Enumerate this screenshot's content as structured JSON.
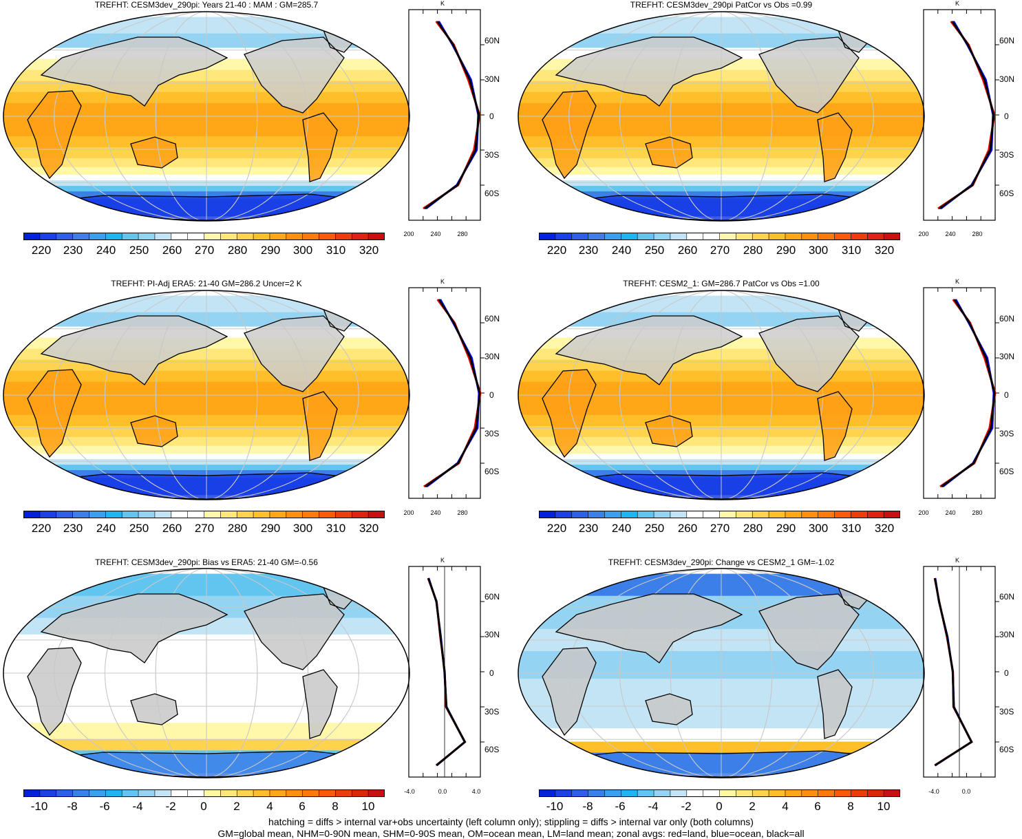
{
  "panels": [
    {
      "title": "TREFHT: CESM3dev_290pi: Years 21-40 : MAM : GM=285.7",
      "kind": "abs"
    },
    {
      "title": "TREFHT: CESM3dev_290pi PatCor vs Obs =0.99",
      "kind": "abs"
    },
    {
      "title": "TREFHT: PI-Adj ERA5: 21-40 GM=286.2 Uncer=2 K",
      "kind": "abs"
    },
    {
      "title": "TREFHT: CESM2_1: GM=286.7 PatCor vs Obs =1.00",
      "kind": "abs"
    },
    {
      "title": "TREFHT: CESM3dev_290pi: Bias vs ERA5: 21-40 GM=-0.56",
      "kind": "diff"
    },
    {
      "title": "TREFHT: CESM3dev_290pi: Change vs CESM2_1 GM=-1.02",
      "kind": "diff"
    }
  ],
  "colorbars": {
    "abs_labels": [
      "220",
      "230",
      "240",
      "250",
      "260",
      "270",
      "280",
      "290",
      "300",
      "310",
      "320"
    ],
    "diff_labels": [
      "-10",
      "-8",
      "-6",
      "-4",
      "-2",
      "0",
      "2",
      "4",
      "6",
      "8",
      "10"
    ],
    "colors": [
      "#0022dd",
      "#1a40e6",
      "#2f5ee8",
      "#3d7fe8",
      "#3b9ff0",
      "#1fb4f2",
      "#62c5f0",
      "#94d3f2",
      "#c2e4f5",
      "#ffffff",
      "#ffffff",
      "#fff8a8",
      "#ffe77a",
      "#ffd34d",
      "#ffbf2a",
      "#ffa717",
      "#ff900f",
      "#ff7a0a",
      "#fa5a0a",
      "#ee3d0c",
      "#dd2410",
      "#c80f12"
    ]
  },
  "zonal": {
    "unit": "K",
    "lat_labels": [
      "60N",
      "30N",
      "0",
      "30S",
      "60S"
    ],
    "abs_x_left": [
      "200",
      "240",
      "280"
    ],
    "abs_x_right": [
      "200",
      "240",
      "280"
    ],
    "diff_x_left": [
      "-4.0",
      "0.0",
      "4.0"
    ],
    "diff_x_right": [
      "-4.0",
      "0.0"
    ]
  },
  "colors": {
    "land": "#ff0000",
    "ocean": "#0000ff",
    "all": "#000000"
  },
  "footnote": {
    "line1": "hatching = diffs > internal var+obs uncertainty (left column only); stippling = diffs > internal var only (both columns)",
    "line2": "GM=global mean, NHM=0-90N mean, SHM=0-90S mean, OM=ocean mean, LM=land mean; zonal avgs: red=land, blue=ocean, black=all"
  },
  "chart_data": [
    {
      "type": "heatmap",
      "title": "TREFHT: CESM3dev_290pi: Years 21-40 : MAM : GM=285.7",
      "colorbar_range": [
        215,
        325
      ],
      "zonal_profile": {
        "lat": [
          80,
          60,
          30,
          0,
          -30,
          -60,
          -80
        ],
        "all": [
          240,
          262,
          285,
          298,
          293,
          268,
          222
        ]
      }
    },
    {
      "type": "heatmap",
      "title": "TREFHT: CESM3dev_290pi PatCor vs Obs =0.99",
      "colorbar_range": [
        215,
        325
      ],
      "zonal_profile": {
        "lat": [
          80,
          60,
          30,
          0,
          -30,
          -60,
          -80
        ],
        "all": [
          240,
          262,
          285,
          298,
          293,
          268,
          222
        ]
      }
    },
    {
      "type": "heatmap",
      "title": "TREFHT: PI-Adj ERA5: 21-40 GM=286.2 Uncer=2 K",
      "colorbar_range": [
        215,
        325
      ],
      "zonal_profile": {
        "lat": [
          80,
          60,
          30,
          0,
          -30,
          -60,
          -80
        ],
        "all": [
          242,
          263,
          286,
          299,
          294,
          269,
          223
        ]
      }
    },
    {
      "type": "heatmap",
      "title": "TREFHT: CESM2_1: GM=286.7 PatCor vs Obs =1.00",
      "colorbar_range": [
        215,
        325
      ],
      "zonal_profile": {
        "lat": [
          80,
          60,
          30,
          0,
          -30,
          -60,
          -80
        ],
        "all": [
          243,
          264,
          287,
          299,
          294,
          270,
          225
        ]
      }
    },
    {
      "type": "heatmap",
      "title": "TREFHT: CESM3dev_290pi: Bias vs ERA5: 21-40 GM=-0.56",
      "colorbar_range": [
        -11,
        11
      ],
      "zonal_profile": {
        "lat": [
          80,
          60,
          30,
          0,
          -30,
          -60,
          -80
        ],
        "all": [
          -2.0,
          -1.0,
          -0.5,
          0.0,
          0.2,
          2.5,
          -1.0
        ]
      }
    },
    {
      "type": "heatmap",
      "title": "TREFHT: CESM3dev_290pi: Change vs CESM2_1 GM=-1.02",
      "colorbar_range": [
        -11,
        11
      ],
      "zonal_profile": {
        "lat": [
          80,
          60,
          30,
          0,
          -30,
          -60,
          -80
        ],
        "all": [
          -3.0,
          -2.5,
          -1.5,
          -0.8,
          -0.7,
          1.5,
          -3.0
        ]
      }
    }
  ]
}
